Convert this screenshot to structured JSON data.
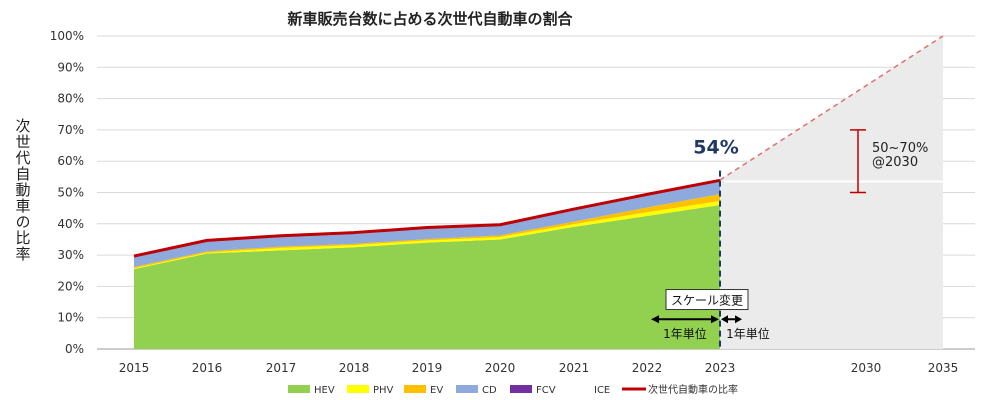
{
  "chart_data": {
    "type": "area",
    "title": "新車販売台数に占める次世代自動車の割合",
    "ylabel": "次世代自動車の比率",
    "xlabel": "",
    "ylim": [
      0,
      100
    ],
    "y_ticks": [
      "0%",
      "10%",
      "20%",
      "30%",
      "40%",
      "50%",
      "60%",
      "70%",
      "80%",
      "90%",
      "100%"
    ],
    "x_ticks": [
      "2015",
      "2016",
      "2017",
      "2018",
      "2019",
      "2020",
      "2021",
      "2022",
      "2023",
      "2030",
      "2035"
    ],
    "x": [
      2015,
      2016,
      2017,
      2018,
      2019,
      2020,
      2021,
      2022,
      2023
    ],
    "stacked": true,
    "grid": true,
    "legend_position": "bottom",
    "series": [
      {
        "name": "HEV",
        "color": "#92D050",
        "values": [
          25.5,
          30.5,
          31.5,
          32.5,
          34.0,
          35.0,
          39.0,
          42.5,
          46.0
        ]
      },
      {
        "name": "PHV",
        "color": "#FFFF00",
        "values": [
          0.3,
          0.3,
          0.8,
          0.7,
          0.7,
          0.8,
          0.9,
          1.2,
          1.3
        ]
      },
      {
        "name": "EV",
        "color": "#FFC000",
        "values": [
          0.4,
          0.4,
          0.4,
          0.4,
          0.4,
          0.5,
          0.8,
          1.5,
          2.2
        ]
      },
      {
        "name": "CD",
        "color": "#8EA9DB",
        "values": [
          3.5,
          3.5,
          3.5,
          3.6,
          3.7,
          3.4,
          4.0,
          4.2,
          4.4
        ]
      },
      {
        "name": "FCV",
        "color": "#7030A0",
        "values": [
          0,
          0,
          0,
          0,
          0,
          0,
          0,
          0,
          0
        ]
      },
      {
        "name": "ICE",
        "color": "#FFFFFF",
        "values": [
          70.3,
          65.3,
          63.8,
          62.8,
          61.2,
          60.3,
          55.3,
          50.6,
          46.1
        ]
      }
    ],
    "total_line": {
      "name": "次世代自動車の比率",
      "color": "#C00000",
      "values": [
        29.7,
        34.7,
        36.2,
        37.2,
        38.8,
        39.7,
        44.7,
        49.4,
        53.9
      ]
    },
    "projection": {
      "from_year": 2023,
      "from_value": 54,
      "to_year": 2035,
      "to_value": 100,
      "fill_color": "#EBEBEB"
    },
    "target_range": {
      "year": 2030,
      "low": 50,
      "high": 70,
      "label_line1": "50~70%",
      "label_line2": "@2030"
    },
    "annotation_value": "54%",
    "scale_change_label": "スケール変更",
    "interval_label_left": "1年単位",
    "interval_label_right": "1年単位"
  }
}
